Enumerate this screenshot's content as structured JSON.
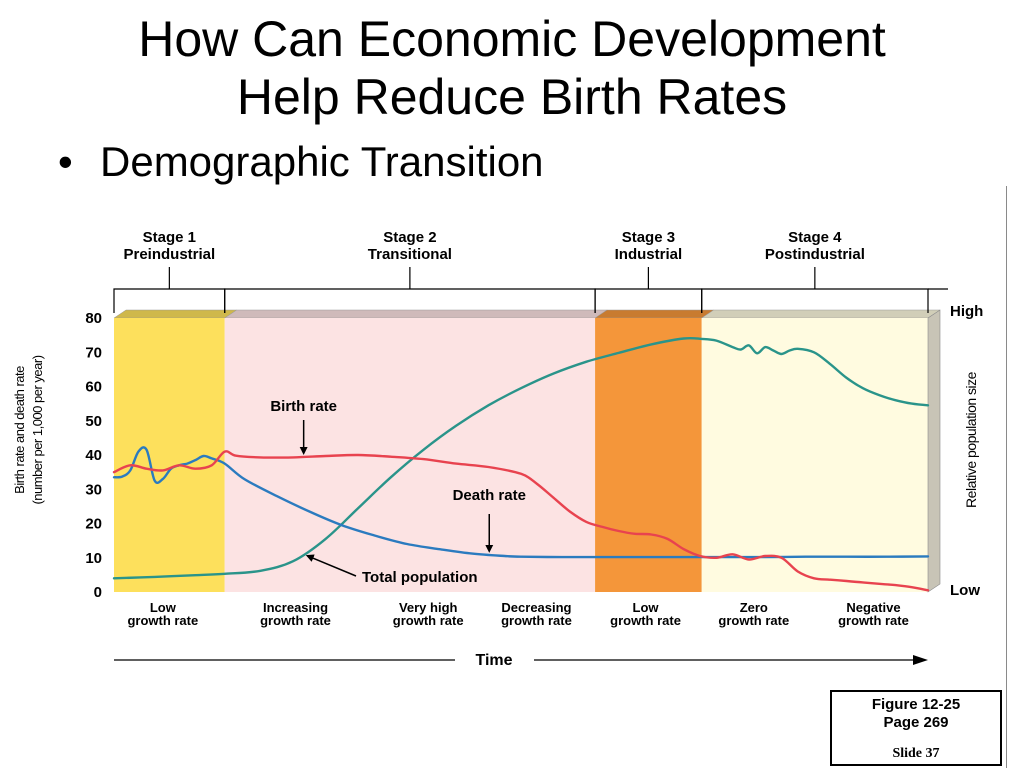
{
  "slide": {
    "title_line1": "How Can Economic Development",
    "title_line2": "Help  Reduce Birth Rates",
    "bullet_symbol": "•",
    "bullet_text": "Demographic Transition"
  },
  "caption": {
    "line1": "Figure 12-25",
    "line2": "Page 269",
    "line3": "Slide 37"
  },
  "colors": {
    "stage1": "#fde05c",
    "stage2": "#fce3e3",
    "stage3": "#f4963a",
    "stage4": "#fffbe0",
    "birth_rate": "#e8434f",
    "death_rate": "#2b7bbf",
    "total_population": "#2a948a"
  },
  "chart_data": {
    "type": "line",
    "title": "",
    "xlabel": "Time",
    "ylabel": "Birth rate and death rate (number per 1,000 per year)",
    "ylabel_line1": "Birth rate and death rate",
    "ylabel_line2": "(number per 1,000 per year)",
    "y2label": "Relative population size",
    "y2_ticks": [
      "High",
      "Low"
    ],
    "ylim": [
      0,
      80
    ],
    "yticks": [
      0,
      10,
      20,
      30,
      40,
      50,
      60,
      70,
      80
    ],
    "xlim": [
      0,
      100
    ],
    "grid": false,
    "legend": "none",
    "stages": [
      {
        "title": "Stage 1",
        "name": "Preindustrial",
        "start": 0,
        "end": 13.6,
        "color": "#fde05c"
      },
      {
        "title": "Stage 2",
        "name": "Transitional",
        "start": 13.6,
        "end": 59.1,
        "color": "#fce3e3"
      },
      {
        "title": "Stage 3",
        "name": "Industrial",
        "start": 59.1,
        "end": 72.2,
        "color": "#f4963a"
      },
      {
        "title": "Stage 4",
        "name": "Postindustrial",
        "start": 72.2,
        "end": 100,
        "color": "#fffbe0"
      }
    ],
    "growth_labels": [
      {
        "line1": "Low",
        "line2": "growth rate",
        "x": 6
      },
      {
        "line1": "Increasing",
        "line2": "growth rate",
        "x": 22.3
      },
      {
        "line1": "Very high",
        "line2": "growth rate",
        "x": 38.6
      },
      {
        "line1": "Decreasing",
        "line2": "growth rate",
        "x": 51.9
      },
      {
        "line1": "Low",
        "line2": "growth rate",
        "x": 65.3
      },
      {
        "line1": "Zero",
        "line2": "growth rate",
        "x": 78.6
      },
      {
        "line1": "Negative",
        "line2": "growth rate",
        "x": 93.3
      }
    ],
    "series": [
      {
        "name": "Birth rate",
        "x": [
          0,
          2,
          4,
          6,
          8,
          10,
          12,
          13.6,
          15,
          18,
          22,
          26,
          30,
          34,
          38,
          42,
          46,
          50,
          52,
          54,
          56,
          58,
          60,
          62,
          64,
          66,
          68,
          70,
          72,
          74,
          76,
          78,
          80,
          82,
          84,
          86,
          88,
          90,
          92,
          94,
          96,
          98,
          100
        ],
        "values": [
          35,
          37,
          36,
          35.5,
          37,
          36,
          37,
          41,
          39.8,
          39.3,
          39.3,
          39.7,
          40,
          39.5,
          38.8,
          37.5,
          36.5,
          34.5,
          31.5,
          27.5,
          23.5,
          20.5,
          19,
          17.8,
          17,
          16.8,
          15.5,
          12.5,
          10.5,
          10,
          11,
          9.5,
          10.5,
          10,
          6,
          4,
          3.6,
          3.2,
          2.8,
          2.4,
          2,
          1.4,
          0.5
        ]
      },
      {
        "name": "Death rate",
        "x": [
          0,
          1,
          2,
          3,
          4,
          5,
          6,
          7,
          8,
          9,
          10,
          11,
          12,
          13.6,
          16,
          20,
          24,
          28,
          32,
          36,
          40,
          44,
          48,
          50,
          55,
          60,
          65,
          70,
          75,
          80,
          85,
          90,
          95,
          100
        ],
        "values": [
          33.5,
          33.7,
          35.5,
          41,
          41.5,
          32.5,
          33,
          36,
          37,
          37.5,
          38.5,
          39.7,
          39,
          37.5,
          33,
          28,
          23.5,
          19.5,
          16.5,
          14,
          12.5,
          11.2,
          10.5,
          10.3,
          10.2,
          10.2,
          10.2,
          10.2,
          10.2,
          10.2,
          10.3,
          10.3,
          10.3,
          10.4
        ]
      },
      {
        "name": "Total population",
        "axis": "relative",
        "x": [
          0,
          5,
          10,
          13.6,
          18,
          22,
          26,
          30,
          34,
          38,
          42,
          46,
          50,
          54,
          58,
          62,
          66,
          70,
          72.2,
          74,
          76,
          77,
          78,
          79,
          80,
          81,
          82,
          83,
          84,
          86,
          88,
          90,
          92,
          94,
          96,
          98,
          100
        ],
        "values": [
          4,
          4.4,
          4.9,
          5.3,
          6.2,
          9,
          15.5,
          24.5,
          33.5,
          41.5,
          48.5,
          54.5,
          59.5,
          63.8,
          67.2,
          69.8,
          72.3,
          74,
          73.9,
          73.4,
          71.5,
          70.8,
          72,
          69.7,
          71.5,
          70.5,
          69.5,
          70.5,
          71,
          70,
          66.5,
          62.5,
          59.5,
          57.5,
          56,
          55,
          54.5
        ]
      }
    ],
    "annotations": [
      {
        "text": "Birth rate",
        "series": "Birth rate"
      },
      {
        "text": "Death rate",
        "series": "Death rate"
      },
      {
        "text": "Total population",
        "series": "Total population"
      }
    ]
  }
}
